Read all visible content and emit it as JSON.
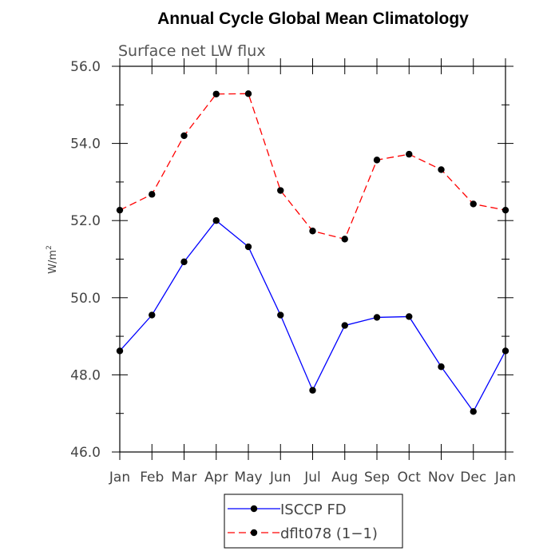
{
  "chart_data": {
    "type": "line",
    "title": "Annual Cycle Global Mean Climatology",
    "subtitle": "Surface net LW flux",
    "xlabel": "",
    "ylabel": "W/m",
    "ylabel_superscript": "2",
    "categories": [
      "Jan",
      "Feb",
      "Mar",
      "Apr",
      "May",
      "Jun",
      "Jul",
      "Aug",
      "Sep",
      "Oct",
      "Nov",
      "Dec",
      "Jan"
    ],
    "ylim": [
      46.0,
      56.0
    ],
    "yticks": [
      46.0,
      48.0,
      50.0,
      52.0,
      54.0,
      56.0
    ],
    "ytick_labels": [
      "46.0",
      "48.0",
      "50.0",
      "52.0",
      "54.0",
      "56.0"
    ],
    "series": [
      {
        "name": "ISCCP FD",
        "color": "#0000ff",
        "linestyle": "solid",
        "marker_color": "#000000",
        "values": [
          48.62,
          49.55,
          50.93,
          52.0,
          51.32,
          49.55,
          47.6,
          49.28,
          49.49,
          49.51,
          48.21,
          47.05,
          48.62
        ]
      },
      {
        "name": "dflt078 (1-1)",
        "color": "#ff0000",
        "linestyle": "dashed",
        "marker_color": "#000000",
        "values": [
          52.27,
          52.68,
          54.2,
          55.28,
          55.29,
          52.78,
          51.73,
          51.52,
          53.57,
          53.72,
          53.32,
          52.43,
          52.27
        ]
      }
    ],
    "legend": {
      "placement": "bottom-center",
      "entries": [
        "ISCCP FD",
        "dflt078 (1−1)"
      ]
    },
    "grid": false
  }
}
